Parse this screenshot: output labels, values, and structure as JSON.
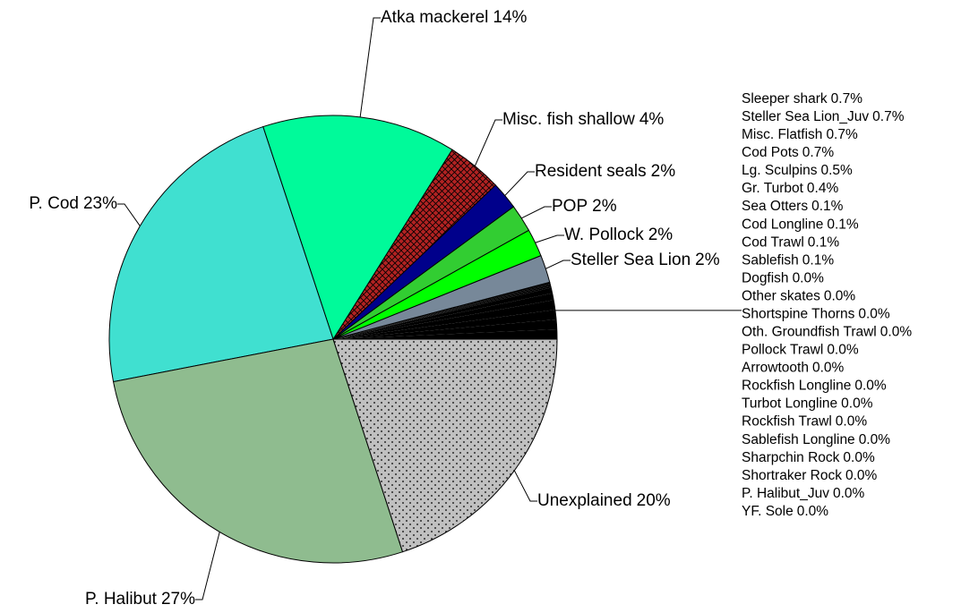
{
  "chart_data": {
    "type": "pie",
    "minor_slices": {
      "categories": [
        "Sleeper shark",
        "Steller Sea Lion_Juv",
        "Misc. Flatfish",
        "Cod Pots",
        "Lg. Sculpins",
        "Gr. Turbot",
        "Sea Otters",
        "Cod Longline",
        "Cod Trawl",
        "Sablefish",
        "Dogfish",
        "Other skates",
        "Shortspine Thorns",
        "Oth. Groundfish Trawl",
        "Pollock Trawl",
        "Arrowtooth",
        "Rockfish Longline",
        "Turbot Longline",
        "Rockfish Trawl",
        "Sablefish Longline",
        "Sharpchin Rock",
        "Shortraker Rock",
        "P. Halibut_Juv",
        "YF. Sole"
      ],
      "values": [
        0.7,
        0.7,
        0.7,
        0.7,
        0.5,
        0.4,
        0.1,
        0.1,
        0.1,
        0.1,
        0.0,
        0.0,
        0.0,
        0.0,
        0.0,
        0.0,
        0.0,
        0.0,
        0.0,
        0.0,
        0.0,
        0.0,
        0.0,
        0.0
      ],
      "value_labels": [
        "0.7%",
        "0.7%",
        "0.7%",
        "0.7%",
        "0.5%",
        "0.4%",
        "0.1%",
        "0.1%",
        "0.1%",
        "0.1%",
        "0.0%",
        "0.0%",
        "0.0%",
        "0.0%",
        "0.0%",
        "0.0%",
        "0.0%",
        "0.0%",
        "0.0%",
        "0.0%",
        "0.0%",
        "0.0%",
        "0.0%",
        "0.0%"
      ],
      "color": "#000000"
    },
    "slices": {
      "categories": [
        "Steller Sea Lion",
        "W. Pollock",
        "POP",
        "Resident seals",
        "Misc. fish shallow",
        "Atka mackerel",
        "P. Cod",
        "P. Halibut",
        "Unexplained"
      ],
      "values": [
        2,
        2,
        2,
        2,
        4,
        14,
        23,
        27,
        20
      ],
      "value_labels": [
        "2%",
        "2%",
        "2%",
        "2%",
        "4%",
        "14%",
        "23%",
        "27%",
        "20%"
      ],
      "colors": [
        "#778899",
        "#00ff00",
        "#32cd32",
        "#00008b",
        "#b22222",
        "#00fa9a",
        "#40e0d0",
        "#8fbc8f",
        "#c0c0c0"
      ],
      "patterns": [
        "none",
        "none",
        "none",
        "none",
        "crosshatch",
        "none",
        "none",
        "none",
        "dots"
      ]
    }
  }
}
